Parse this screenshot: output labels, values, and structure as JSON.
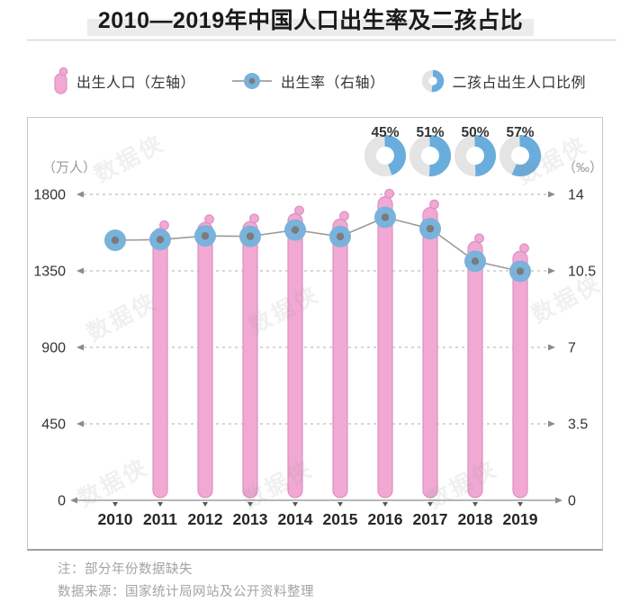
{
  "title": "2010—2019年中国人口出生率及二孩占比",
  "legend": [
    {
      "label": "出生人口（左轴）",
      "icon": "baby-bar-icon"
    },
    {
      "label": "出生率（右轴）",
      "icon": "line-dot-icon"
    },
    {
      "label": "二孩占出生人口比例",
      "icon": "donut-icon"
    }
  ],
  "axes": {
    "left_unit": "（万人）",
    "right_unit": "（‰）",
    "left_ticks": [
      "1800",
      "1350",
      "900",
      "450",
      "0"
    ],
    "right_ticks": [
      "14",
      "10.5",
      "7",
      "3.5",
      "0"
    ]
  },
  "notes": {
    "note1": "注：部分年份数据缺失",
    "note2": "数据来源：国家统计局网站及公开资料整理"
  },
  "watermark": "数据侠",
  "colors": {
    "bar_fill": "#F1A9D3",
    "bar_stroke": "#DB90C2",
    "dot_fill": "#79B3DB",
    "dot_core": "#7B7B7B",
    "line": "#9A9A9A",
    "donut_blue": "#69ADDC",
    "donut_gray": "#E4E4E4",
    "grid": "#ADADAD",
    "axis": "#8C8C8C",
    "tick_text": "#333333",
    "unit_text": "#999999",
    "year_text": "#262626",
    "pct_text": "#333333",
    "title_highlight": "#ECECEC"
  },
  "chart_data": {
    "type": "bar",
    "title": "2010—2019年中国人口出生率及二孩占比",
    "categories": [
      "2010",
      "2011",
      "2012",
      "2013",
      "2014",
      "2015",
      "2016",
      "2017",
      "2018",
      "2019"
    ],
    "series": [
      {
        "name": "出生人口（左轴）",
        "type": "bar",
        "unit": "万人",
        "values": [
          null,
          1600,
          1635,
          1640,
          1687,
          1655,
          1786,
          1723,
          1523,
          1465
        ]
      },
      {
        "name": "出生率（右轴）",
        "type": "line",
        "unit": "‰",
        "values": [
          11.9,
          11.93,
          12.1,
          12.08,
          12.37,
          12.07,
          12.95,
          12.43,
          10.94,
          10.48
        ]
      },
      {
        "name": "二孩占出生人口比例",
        "type": "donut",
        "unit": "%",
        "values": [
          null,
          null,
          null,
          null,
          null,
          null,
          45,
          51,
          50,
          57
        ]
      }
    ],
    "left_axis": {
      "label": "（万人）",
      "ticks": [
        0,
        450,
        900,
        1350,
        1800
      ],
      "range": [
        0,
        1800
      ]
    },
    "right_axis": {
      "label": "（‰）",
      "ticks": [
        0,
        3.5,
        7,
        10.5,
        14
      ],
      "range": [
        0,
        14
      ]
    },
    "grid": "dashed horizontal",
    "legend_position": "top",
    "note": "注：部分年份数据缺失（2010年无出生人口柱）"
  }
}
